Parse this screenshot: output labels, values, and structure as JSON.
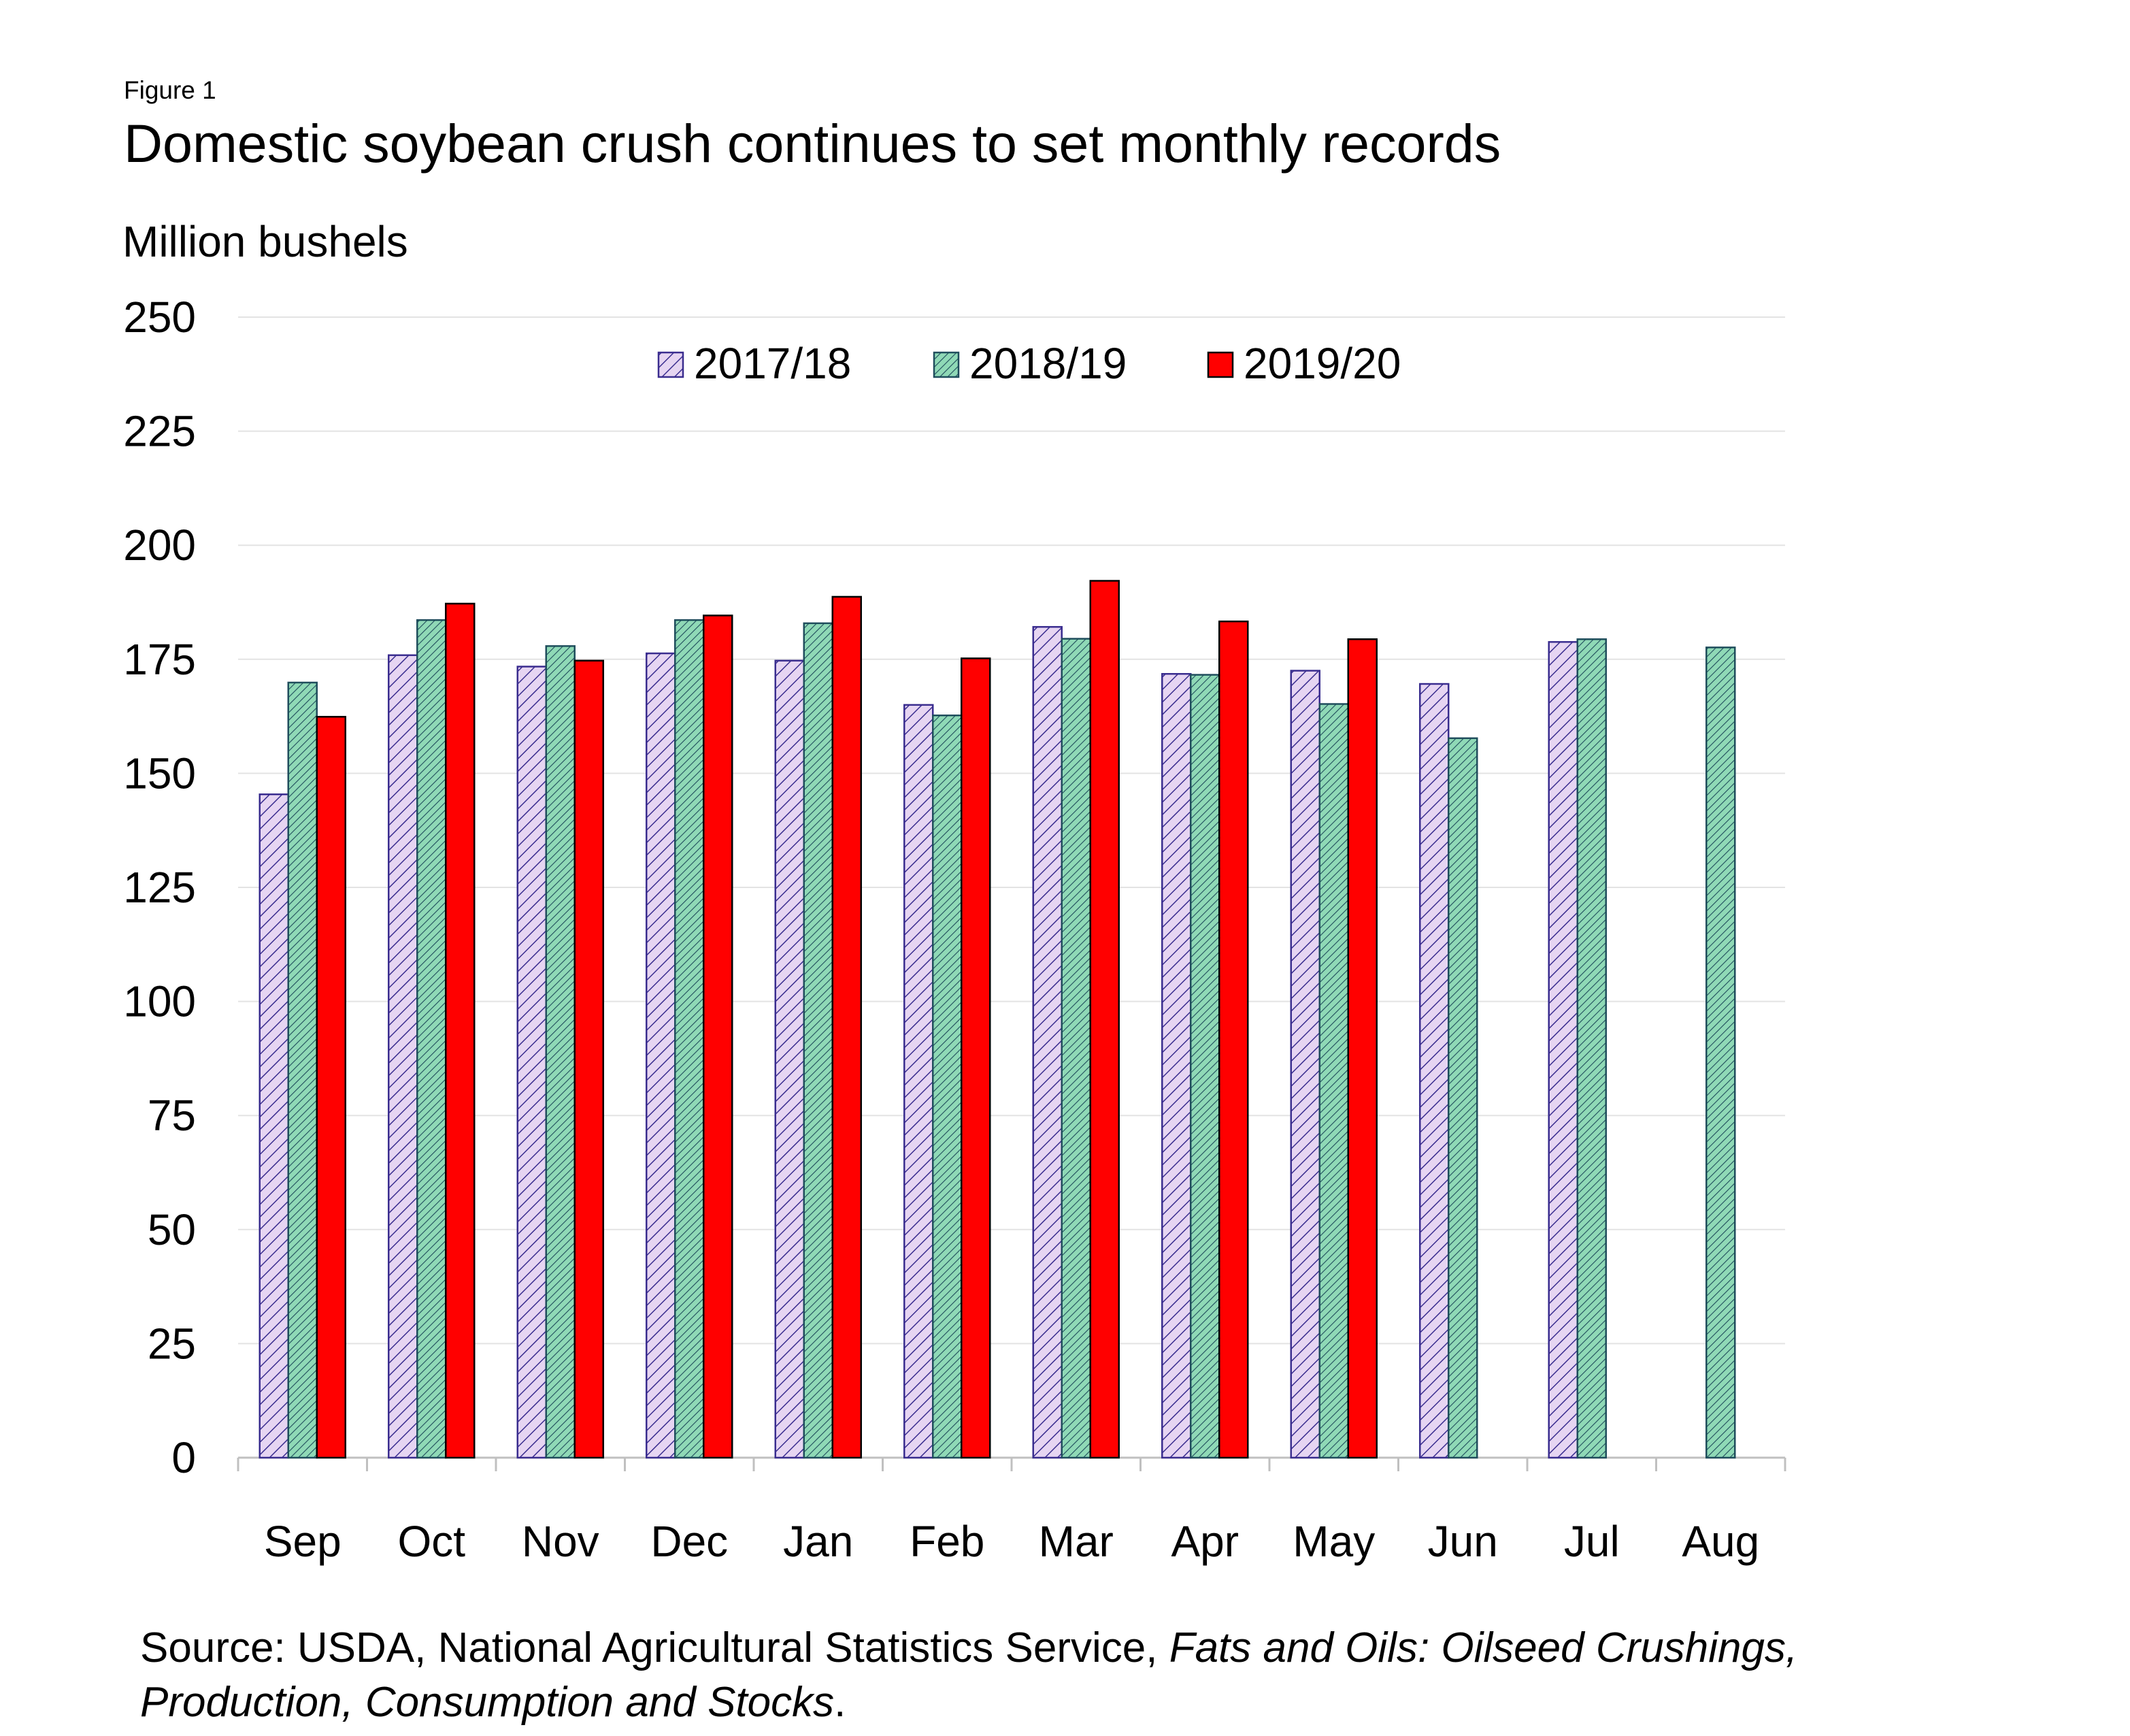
{
  "figure_label": "Figure 1",
  "title": "Domestic soybean crush continues to set monthly records",
  "ylabel": "Million bushels",
  "source": {
    "prefix": "Source: USDA, National Agricultural Statistics Service, ",
    "italic": "Fats and Oils: Oilseed Crushings, Production, Consumption and Stocks",
    "suffix": "."
  },
  "chart_data": {
    "type": "bar",
    "title": "Domestic soybean crush continues to set monthly records",
    "xlabel": "",
    "ylabel": "Million bushels",
    "ylim": [
      0,
      250
    ],
    "yticks": [
      0,
      25,
      50,
      75,
      100,
      125,
      150,
      175,
      200,
      225,
      250
    ],
    "grid": true,
    "legend_position": "top-center",
    "categories": [
      "Sep",
      "Oct",
      "Nov",
      "Dec",
      "Jan",
      "Feb",
      "Mar",
      "Apr",
      "May",
      "Jun",
      "Jul",
      "Aug"
    ],
    "series": [
      {
        "name": "2017/18",
        "pattern": "diagonal-hatch",
        "fill": "#e6d5f2",
        "stroke": "#3a2d8f",
        "values": [
          145.4,
          175.9,
          173.4,
          176.3,
          174.7,
          165.0,
          182.1,
          171.8,
          172.5,
          169.6,
          178.8,
          null
        ]
      },
      {
        "name": "2018/19",
        "pattern": "dense-hatch",
        "fill": "#8fd9b6",
        "stroke": "#1f4d5c",
        "values": [
          169.9,
          183.6,
          177.9,
          183.6,
          182.9,
          162.7,
          179.5,
          171.6,
          165.2,
          157.7,
          179.4,
          177.6
        ]
      },
      {
        "name": "2019/20",
        "pattern": "solid",
        "fill": "#ff0000",
        "stroke": "#000000",
        "values": [
          162.4,
          187.2,
          174.7,
          184.6,
          188.7,
          175.2,
          192.2,
          183.3,
          179.4,
          null,
          null,
          null
        ]
      }
    ]
  }
}
